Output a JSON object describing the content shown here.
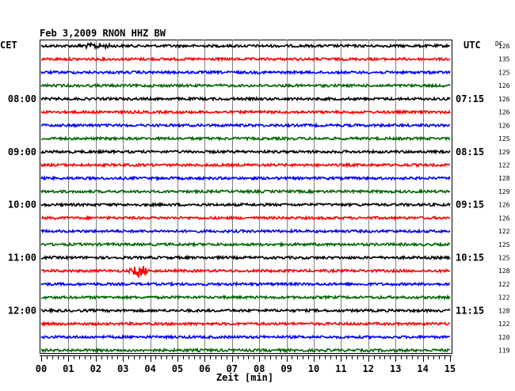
{
  "chart_data": {
    "type": "line",
    "title": "Feb 3,2009   RNON HHZ BW",
    "left_axis_label": "CET",
    "right_axis_label": "UTC",
    "dc_label": "DC",
    "xlabel": "Zeit [min]",
    "xlim": [
      0,
      15
    ],
    "x_ticks": [
      "00",
      "01",
      "02",
      "03",
      "04",
      "05",
      "06",
      "07",
      "08",
      "09",
      "10",
      "11",
      "12",
      "13",
      "14",
      "15"
    ],
    "trace_colors": [
      "#000000",
      "#ff0000",
      "#0000ff",
      "#006600"
    ],
    "traces": [
      {
        "cet": "",
        "utc": "",
        "dc": "126"
      },
      {
        "cet": "",
        "utc": "",
        "dc": "135"
      },
      {
        "cet": "",
        "utc": "",
        "dc": "125"
      },
      {
        "cet": "",
        "utc": "",
        "dc": "126"
      },
      {
        "cet": "08:00",
        "utc": "07:15",
        "dc": "126"
      },
      {
        "cet": "",
        "utc": "",
        "dc": "126"
      },
      {
        "cet": "",
        "utc": "",
        "dc": "126"
      },
      {
        "cet": "",
        "utc": "",
        "dc": "125"
      },
      {
        "cet": "09:00",
        "utc": "08:15",
        "dc": "129"
      },
      {
        "cet": "",
        "utc": "",
        "dc": "122"
      },
      {
        "cet": "",
        "utc": "",
        "dc": "128"
      },
      {
        "cet": "",
        "utc": "",
        "dc": "129"
      },
      {
        "cet": "10:00",
        "utc": "09:15",
        "dc": "126"
      },
      {
        "cet": "",
        "utc": "",
        "dc": "126"
      },
      {
        "cet": "",
        "utc": "",
        "dc": "122"
      },
      {
        "cet": "",
        "utc": "",
        "dc": "125"
      },
      {
        "cet": "11:00",
        "utc": "10:15",
        "dc": "125"
      },
      {
        "cet": "",
        "utc": "",
        "dc": "128"
      },
      {
        "cet": "",
        "utc": "",
        "dc": "122"
      },
      {
        "cet": "",
        "utc": "",
        "dc": "122"
      },
      {
        "cet": "12:00",
        "utc": "11:15",
        "dc": "128"
      },
      {
        "cet": "",
        "utc": "",
        "dc": "122"
      },
      {
        "cet": "",
        "utc": "",
        "dc": "120"
      },
      {
        "cet": "",
        "utc": "",
        "dc": "119"
      }
    ],
    "events": [
      {
        "trace": 0,
        "x": 2.0,
        "span": 1.3,
        "amplitude": 4
      },
      {
        "trace": 17,
        "x": 3.6,
        "span": 0.5,
        "amplitude": 9
      }
    ]
  }
}
